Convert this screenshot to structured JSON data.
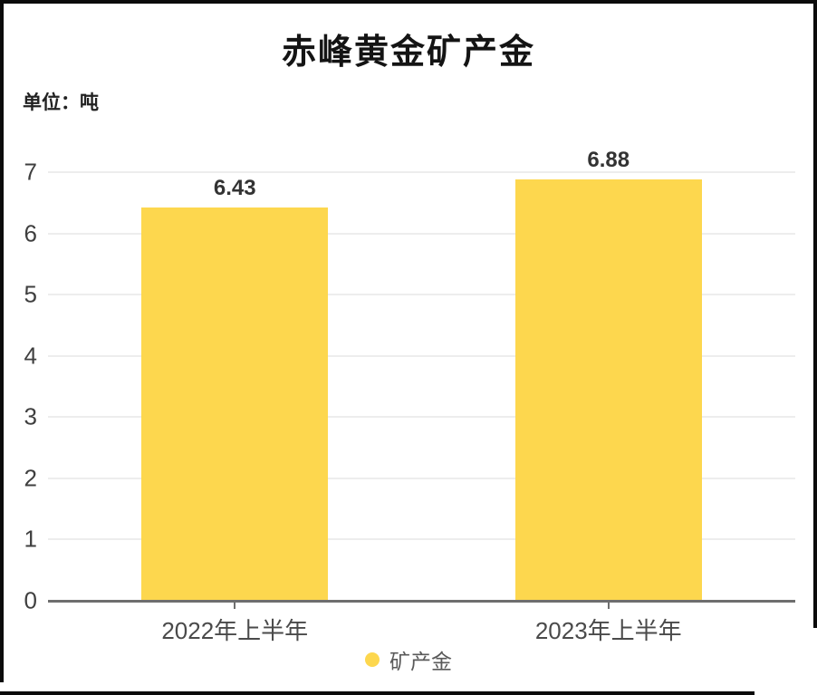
{
  "page": {
    "background": "#ffffff",
    "frame_color": "#0b0b0b"
  },
  "chart_data": {
    "type": "bar",
    "title": "赤峰黄金矿产金",
    "unit_label": "单位：吨",
    "categories": [
      "2022年上半年",
      "2023年上半年"
    ],
    "series": [
      {
        "name": "矿产金",
        "color": "#FDD74E",
        "values": [
          6.43,
          6.88
        ]
      }
    ],
    "value_labels": [
      "6.43",
      "6.88"
    ],
    "ylim": [
      0,
      7
    ],
    "yticks": [
      0,
      1,
      2,
      3,
      4,
      5,
      6,
      7
    ],
    "grid": "horizontal",
    "grid_color": "#ededed",
    "axis_color": "#6e6e6e",
    "legend": {
      "position": "bottom",
      "items": [
        {
          "label": "矿产金",
          "color": "#FDD74E"
        }
      ]
    }
  }
}
